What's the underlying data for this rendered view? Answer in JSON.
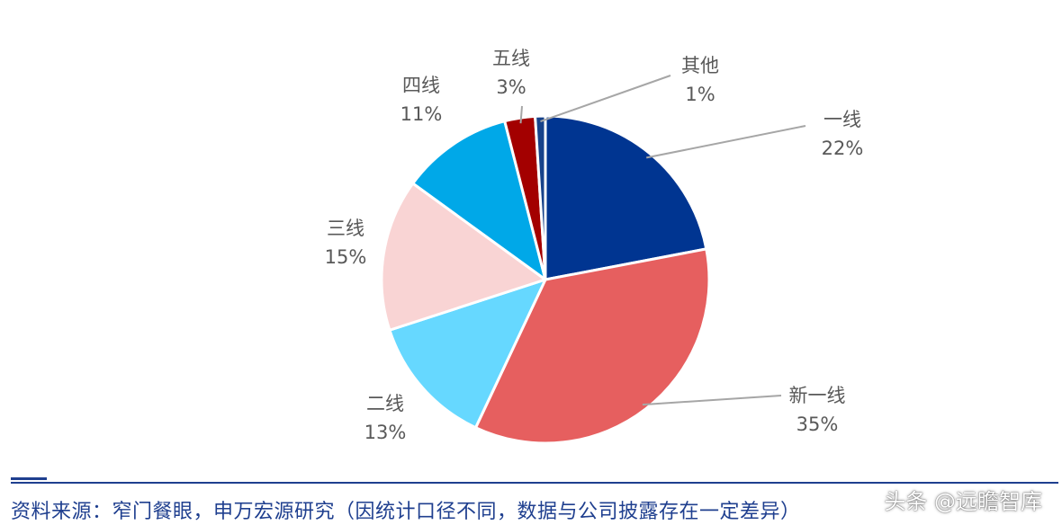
{
  "chart_data": {
    "type": "pie",
    "slices": [
      {
        "name": "一线",
        "label": "22%",
        "value": 22,
        "color": "#003591"
      },
      {
        "name": "新一线",
        "label": "35%",
        "value": 35,
        "color": "#e65f5f"
      },
      {
        "name": "二线",
        "label": "13%",
        "value": 13,
        "color": "#66d8ff"
      },
      {
        "name": "三线",
        "label": "15%",
        "value": 15,
        "color": "#f9d4d4"
      },
      {
        "name": "四线",
        "label": "11%",
        "value": 11,
        "color": "#00a8e8"
      },
      {
        "name": "五线",
        "label": "3%",
        "value": 3,
        "color": "#a30000"
      },
      {
        "name": "其他",
        "label": "1%",
        "value": 1,
        "color": "#17428a"
      }
    ]
  },
  "footer": {
    "source": "资料来源：窄门餐眼，申万宏源研究（因统计口径不同，数据与公司披露存在一定差异）",
    "watermark": "头条 @远瞻智库"
  }
}
